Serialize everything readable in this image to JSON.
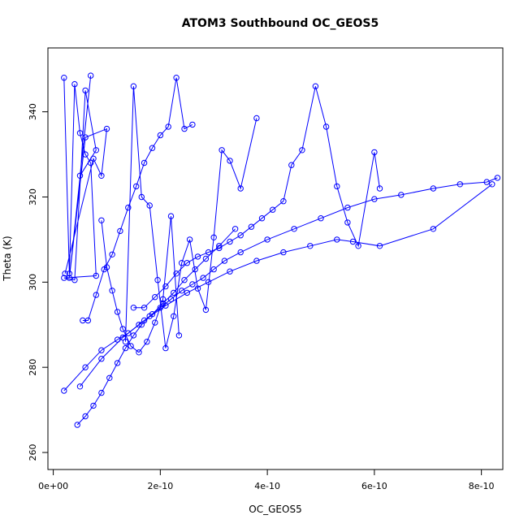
{
  "chart_data": {
    "type": "line",
    "title": "ATOM3 Southbound OC_GEOS5",
    "xlabel": "OC_GEOS5",
    "ylabel": "Theta (K)",
    "xlim": [
      -1e-11,
      8.4e-10
    ],
    "ylim": [
      256,
      355
    ],
    "x_ticks": [
      0,
      2e-10,
      4e-10,
      6e-10,
      8e-10
    ],
    "x_tick_labels": [
      "0e+00",
      "2e-10",
      "4e-10",
      "6e-10",
      "8e-10"
    ],
    "y_ticks": [
      260,
      280,
      300,
      320,
      340
    ],
    "y_tick_labels": [
      "260",
      "280",
      "300",
      "320",
      "340"
    ],
    "grid": false,
    "legend": "none",
    "series_color": "#0000ff",
    "marker": "open-circle",
    "series": [
      {
        "x": [
          2e-11,
          6e-11,
          9e-11,
          1.2e-10,
          1.4e-10,
          1.6e-10,
          1.8e-10,
          2e-10,
          2.2e-10,
          2.4e-10,
          2.6e-10,
          2.8e-10,
          3e-10,
          3.2e-10,
          3.5e-10,
          4e-10,
          4.5e-10,
          5e-10,
          5.5e-10,
          6e-10,
          6.5e-10,
          7.1e-10,
          7.6e-10,
          8.1e-10,
          8.3e-10
        ],
        "y": [
          274.5,
          280.0,
          284.0,
          286.5,
          288.0,
          290.0,
          292.0,
          294.0,
          296.0,
          298.0,
          299.5,
          301.0,
          303.0,
          305.0,
          307.0,
          310.0,
          312.5,
          315.0,
          317.5,
          319.5,
          320.5,
          322.0,
          323.0,
          323.5,
          324.5
        ]
      },
      {
        "x": [
          5e-11,
          9e-11,
          1.3e-10,
          1.7e-10,
          2.1e-10,
          2.5e-10,
          2.9e-10,
          3.3e-10,
          3.8e-10,
          4.3e-10,
          4.8e-10,
          5.3e-10,
          5.6e-10,
          6.1e-10,
          7.1e-10,
          8.2e-10
        ],
        "y": [
          275.5,
          282.0,
          287.0,
          291.0,
          294.5,
          297.5,
          300.0,
          302.5,
          305.0,
          307.0,
          308.5,
          310.0,
          309.5,
          308.5,
          312.5,
          323.0
        ]
      },
      {
        "x": [
          4.5e-11,
          6e-11,
          7.5e-11,
          9e-11,
          1.05e-10,
          1.2e-10,
          1.35e-10,
          1.5e-10,
          1.65e-10,
          1.85e-10,
          2.05e-10,
          2.25e-10,
          2.45e-10,
          2.65e-10,
          2.85e-10,
          3.1e-10,
          3.4e-10
        ],
        "y": [
          266.5,
          268.5,
          271.0,
          274.0,
          277.5,
          281.0,
          284.5,
          287.5,
          290.0,
          292.5,
          295.0,
          297.5,
          300.5,
          303.0,
          305.5,
          308.5,
          312.5
        ]
      },
      {
        "x": [
          2e-11,
          3e-11,
          4e-11,
          5e-11,
          6e-11,
          7e-11,
          8e-11,
          2e-11,
          4e-11,
          6e-11,
          8e-11,
          5e-11,
          7e-11,
          3e-11,
          6e-11,
          1e-10,
          9e-11,
          7.5e-11,
          2.2e-11
        ],
        "y": [
          348.0,
          302.0,
          346.5,
          335.0,
          330.0,
          328.0,
          301.5,
          301.0,
          300.5,
          345.0,
          331.0,
          325.0,
          348.5,
          301.0,
          334.0,
          336.0,
          325.0,
          329.0,
          302.0
        ]
      },
      {
        "x": [
          5.5e-11,
          6.5e-11,
          8e-11,
          9.5e-11,
          1.1e-10,
          1.25e-10,
          1.4e-10,
          1.55e-10,
          1.7e-10,
          1.85e-10,
          2e-10,
          2.15e-10,
          2.3e-10,
          2.45e-10,
          2.6e-10
        ],
        "y": [
          291.0,
          291.0,
          297.0,
          303.0,
          306.5,
          312.0,
          317.5,
          322.5,
          328.0,
          331.5,
          334.5,
          336.5,
          348.0,
          336.0,
          337.0
        ]
      },
      {
        "x": [
          9e-11,
          1e-10,
          1.1e-10,
          1.2e-10,
          1.3e-10,
          1.45e-10,
          1.6e-10,
          1.75e-10,
          1.9e-10,
          2.05e-10,
          2.2e-10,
          2.35e-10
        ],
        "y": [
          314.5,
          303.5,
          298.0,
          293.0,
          289.0,
          285.0,
          283.5,
          286.0,
          290.5,
          296.0,
          315.5,
          287.5
        ]
      },
      {
        "x": [
          1.35e-10,
          1.5e-10,
          1.65e-10,
          1.8e-10,
          1.95e-10,
          2.1e-10,
          2.25e-10,
          2.4e-10,
          2.55e-10,
          2.7e-10,
          2.85e-10,
          3e-10,
          3.15e-10,
          3.3e-10,
          3.5e-10,
          3.8e-10
        ],
        "y": [
          286.0,
          346.0,
          320.0,
          318.0,
          300.5,
          284.5,
          292.0,
          304.5,
          310.0,
          298.5,
          293.5,
          310.5,
          331.0,
          328.5,
          322.0,
          338.5
        ]
      },
      {
        "x": [
          1.5e-10,
          1.7e-10,
          1.9e-10,
          2.1e-10,
          2.3e-10,
          2.5e-10,
          2.7e-10,
          2.9e-10,
          3.1e-10,
          3.3e-10,
          3.5e-10,
          3.7e-10,
          3.9e-10,
          4.1e-10,
          4.3e-10,
          4.45e-10,
          4.65e-10,
          4.9e-10,
          5.1e-10,
          5.3e-10,
          5.5e-10,
          5.7e-10,
          6e-10,
          6.1e-10
        ],
        "y": [
          294.0,
          294.0,
          296.5,
          299.0,
          302.0,
          304.5,
          306.0,
          307.0,
          308.0,
          309.5,
          311.0,
          313.0,
          315.0,
          317.0,
          319.0,
          327.5,
          331.0,
          346.0,
          336.5,
          322.5,
          314.0,
          308.5,
          330.5,
          322.0
        ]
      }
    ]
  }
}
